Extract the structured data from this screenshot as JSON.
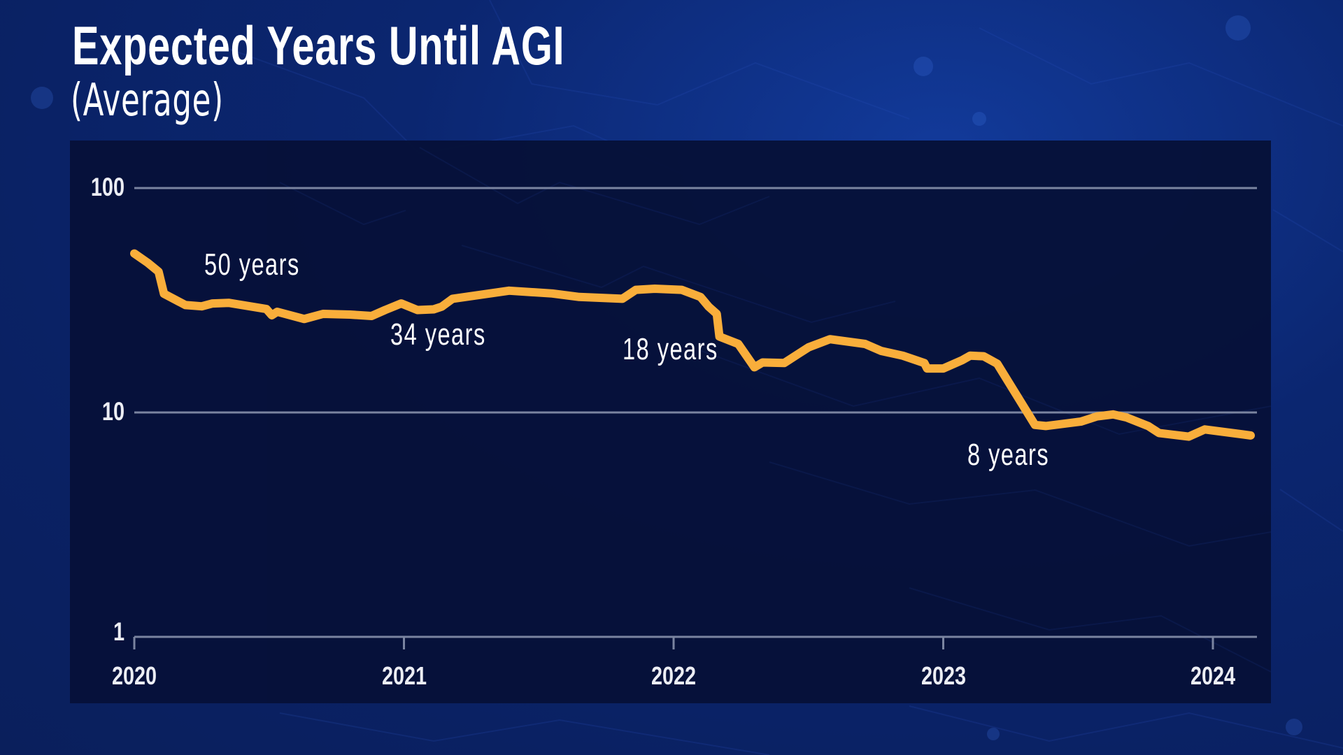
{
  "header": {
    "title": "Expected Years Until AGI",
    "subtitle": "(Average)"
  },
  "colors": {
    "background": "#0b2470",
    "panel": "#061139",
    "line": "#F9AE3B",
    "gridline": "#7a84a0",
    "text": "#eceef4"
  },
  "chart_data": {
    "type": "line",
    "title": "Expected Years Until AGI",
    "subtitle": "(Average)",
    "xlabel": "",
    "ylabel": "",
    "yscale": "log",
    "ylim": [
      1,
      100
    ],
    "xlim": [
      2020,
      2024.15
    ],
    "grid": true,
    "legend": null,
    "y_ticks": [
      {
        "value": 100,
        "label": "100"
      },
      {
        "value": 10,
        "label": "10"
      },
      {
        "value": 1,
        "label": "1"
      }
    ],
    "x_ticks": [
      {
        "value": 2020,
        "label": "2020"
      },
      {
        "value": 2021,
        "label": "2021"
      },
      {
        "value": 2022,
        "label": "2022"
      },
      {
        "value": 2023,
        "label": "2023"
      },
      {
        "value": 2024,
        "label": "2024"
      }
    ],
    "series": [
      {
        "name": "Expected years until AGI (average)",
        "color": "#F9AE3B",
        "x": [
          2020.0,
          2020.05,
          2020.09,
          2020.11,
          2020.19,
          2020.25,
          2020.29,
          2020.35,
          2020.49,
          2020.51,
          2020.53,
          2020.63,
          2020.7,
          2020.8,
          2020.88,
          2020.93,
          2020.99,
          2021.05,
          2021.11,
          2021.14,
          2021.18,
          2021.39,
          2021.55,
          2021.65,
          2021.81,
          2021.86,
          2021.93,
          2022.03,
          2022.1,
          2022.13,
          2022.16,
          2022.17,
          2022.24,
          2022.3,
          2022.33,
          2022.41,
          2022.5,
          2022.58,
          2022.71,
          2022.77,
          2022.85,
          2022.93,
          2022.94,
          2023.0,
          2023.07,
          2023.1,
          2023.15,
          2023.2,
          2023.34,
          2023.38,
          2023.51,
          2023.57,
          2023.63,
          2023.68,
          2023.76,
          2023.8,
          2023.91,
          2023.97,
          2024.14
        ],
        "values": [
          51.1,
          46.4,
          42.4,
          33.8,
          30.1,
          29.7,
          30.6,
          30.8,
          28.9,
          27.1,
          28.1,
          26.1,
          27.5,
          27.3,
          26.9,
          28.6,
          30.6,
          28.6,
          28.8,
          29.6,
          32.1,
          34.9,
          33.9,
          32.7,
          32.1,
          35.2,
          35.6,
          35.2,
          32.7,
          29.6,
          27.5,
          21.8,
          20.2,
          15.9,
          16.7,
          16.6,
          19.5,
          21.2,
          20.2,
          18.8,
          17.9,
          16.6,
          15.7,
          15.7,
          17.1,
          17.9,
          17.8,
          16.5,
          8.8,
          8.7,
          9.1,
          9.6,
          9.8,
          9.5,
          8.7,
          8.1,
          7.8,
          8.4,
          7.9
        ]
      }
    ],
    "annotations": [
      {
        "text": "50 years",
        "x": 2020.26,
        "y": 45
      },
      {
        "text": "34 years",
        "x": 2020.95,
        "y": 22
      },
      {
        "text": "18 years",
        "x": 2021.81,
        "y": 19
      },
      {
        "text": "8 years",
        "x": 2023.09,
        "y": 6.4
      }
    ]
  }
}
